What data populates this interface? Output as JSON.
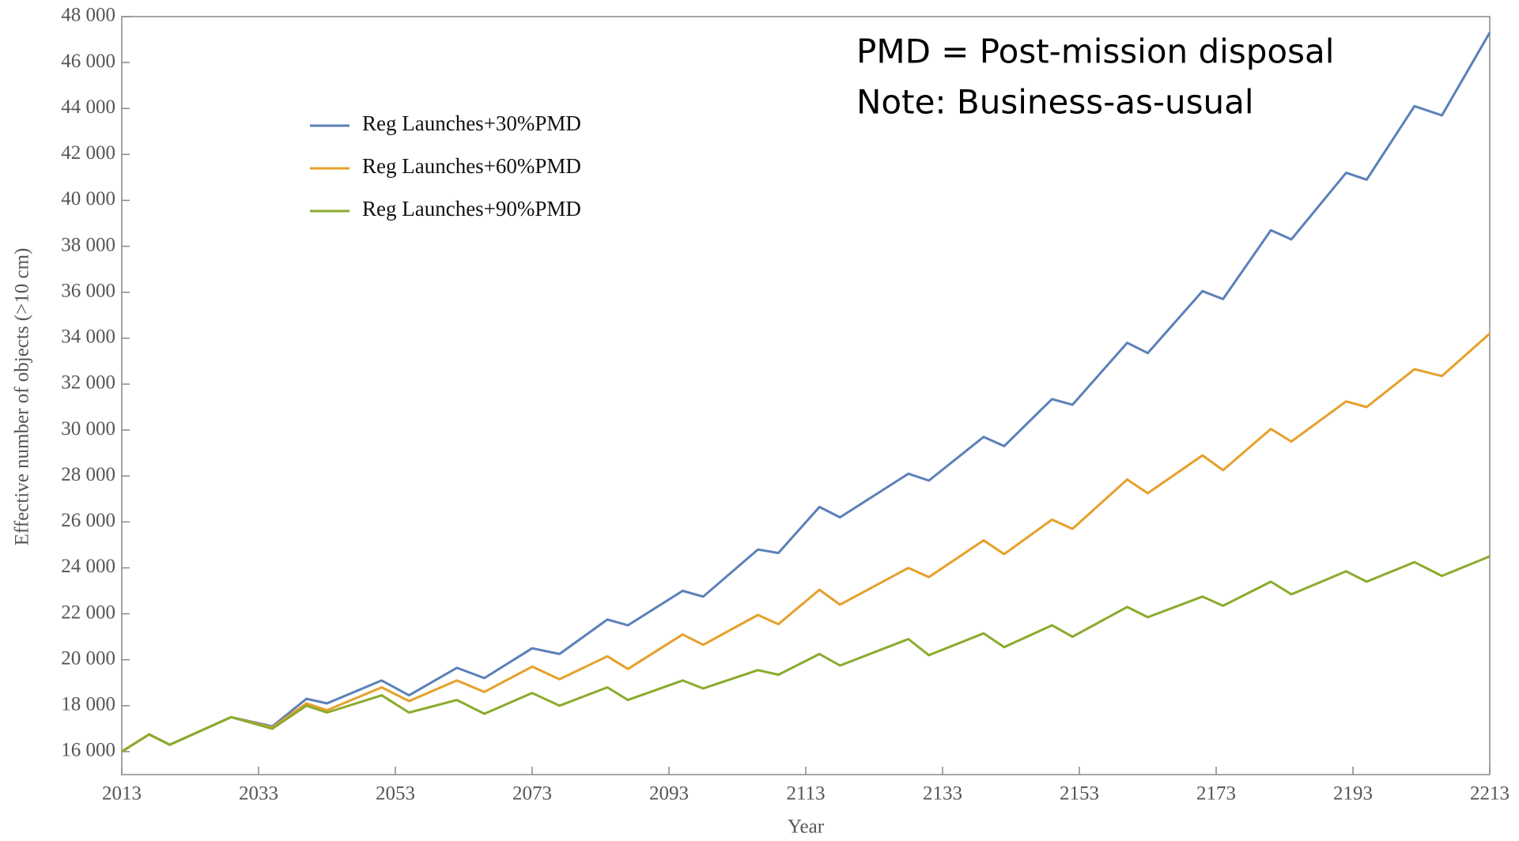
{
  "chart_data": {
    "type": "line",
    "xlabel": "Year",
    "ylabel": "Effective number of objects (>10 cm)",
    "annotations": [
      "PMD = Post-mission disposal",
      "Note: Business-as-usual"
    ],
    "x": [
      2013,
      2017,
      2020,
      2029,
      2035,
      2040,
      2043,
      2051,
      2055,
      2062,
      2066,
      2073,
      2077,
      2084,
      2087,
      2095,
      2098,
      2106,
      2109,
      2115,
      2118,
      2128,
      2131,
      2139,
      2142,
      2149,
      2152,
      2160,
      2163,
      2171,
      2174,
      2181,
      2184,
      2192,
      2195,
      2202,
      2206,
      2213
    ],
    "series": [
      {
        "name": "Reg Launches+30%PMD",
        "color": "#5b80b9",
        "values": [
          16000,
          16750,
          16300,
          17500,
          17100,
          18300,
          18100,
          19100,
          18450,
          19650,
          19200,
          20500,
          20250,
          21750,
          21500,
          23000,
          22750,
          24800,
          24650,
          26650,
          26200,
          28100,
          27800,
          29700,
          29300,
          31350,
          31100,
          33800,
          33350,
          36050,
          35700,
          38700,
          38300,
          41200,
          40900,
          44100,
          43700,
          47300
        ]
      },
      {
        "name": "Reg Launches+60%PMD",
        "color": "#e6a02a",
        "values": [
          16000,
          16750,
          16300,
          17500,
          17050,
          18100,
          17800,
          18800,
          18200,
          19100,
          18600,
          19700,
          19150,
          20150,
          19600,
          21100,
          20650,
          21950,
          21550,
          23050,
          22400,
          24000,
          23600,
          25200,
          24600,
          26100,
          25700,
          27850,
          27250,
          28900,
          28250,
          30050,
          29500,
          31250,
          31000,
          32650,
          32350,
          34200
        ]
      },
      {
        "name": "Reg Launches+90%PMD",
        "color": "#8aab2c",
        "values": [
          16000,
          16750,
          16300,
          17500,
          17000,
          18000,
          17700,
          18450,
          17700,
          18250,
          17650,
          18550,
          18000,
          18800,
          18250,
          19100,
          18750,
          19550,
          19350,
          20250,
          19750,
          20900,
          20200,
          21150,
          20550,
          21500,
          21000,
          22300,
          21850,
          22750,
          22350,
          23400,
          22850,
          23850,
          23400,
          24250,
          23650,
          24500
        ]
      }
    ],
    "xlim": [
      2013,
      2213
    ],
    "xticks": [
      2013,
      2033,
      2053,
      2073,
      2093,
      2113,
      2133,
      2153,
      2173,
      2193,
      2213
    ],
    "ylim": [
      15000,
      48000
    ],
    "yticks": [
      {
        "value": 16000,
        "label": "16 000"
      },
      {
        "value": 18000,
        "label": "18 000"
      },
      {
        "value": 20000,
        "label": "20 000"
      },
      {
        "value": 22000,
        "label": "22 000"
      },
      {
        "value": 24000,
        "label": "24 000"
      },
      {
        "value": 26000,
        "label": "26 000"
      },
      {
        "value": 28000,
        "label": "28 000"
      },
      {
        "value": 30000,
        "label": "30 000"
      },
      {
        "value": 32000,
        "label": "32 000"
      },
      {
        "value": 34000,
        "label": "34 000"
      },
      {
        "value": 36000,
        "label": "36 000"
      },
      {
        "value": 38000,
        "label": "38 000"
      },
      {
        "value": 40000,
        "label": "40 000"
      },
      {
        "value": 42000,
        "label": "42 000"
      },
      {
        "value": 44000,
        "label": "44 000"
      },
      {
        "value": 46000,
        "label": "46 000"
      },
      {
        "value": 48000,
        "label": "48 000"
      }
    ],
    "grid": false,
    "legend": "upper left"
  }
}
